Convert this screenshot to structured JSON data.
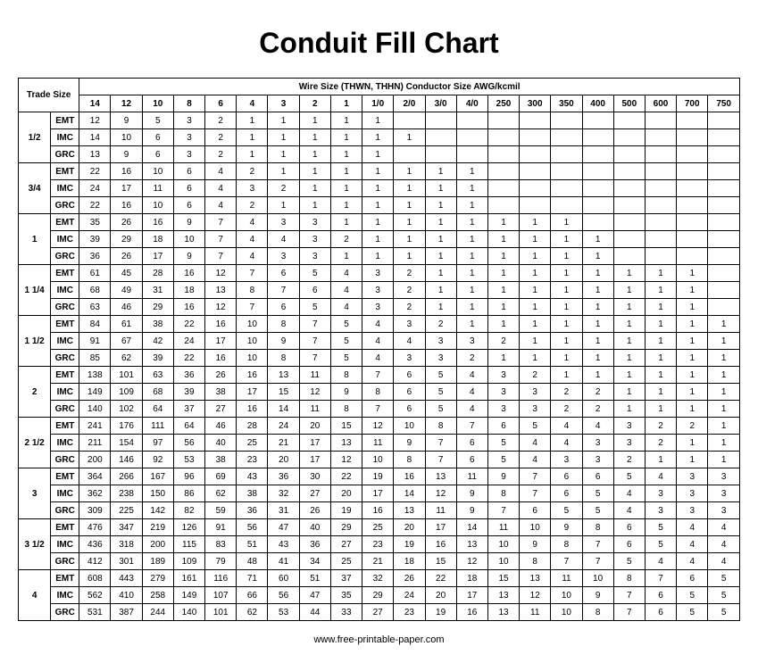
{
  "title": "Conduit Fill Chart",
  "footer": "www.free-printable-paper.com",
  "trade_size_label": "Trade Size",
  "wire_size_label": "Wire Size (THWN, THHN) Conductor Size AWG/kcmil",
  "wire_sizes": [
    "14",
    "12",
    "10",
    "8",
    "6",
    "4",
    "3",
    "2",
    "1",
    "1/0",
    "2/0",
    "3/0",
    "4/0",
    "250",
    "300",
    "350",
    "400",
    "500",
    "600",
    "700",
    "750"
  ],
  "groups": [
    {
      "trade": "1/2",
      "rows": [
        {
          "type": "EMT",
          "v": [
            "12",
            "9",
            "5",
            "3",
            "2",
            "1",
            "1",
            "1",
            "1",
            "1",
            "",
            "",
            "",
            "",
            "",
            "",
            "",
            "",
            "",
            "",
            ""
          ]
        },
        {
          "type": "IMC",
          "v": [
            "14",
            "10",
            "6",
            "3",
            "2",
            "1",
            "1",
            "1",
            "1",
            "1",
            "1",
            "",
            "",
            "",
            "",
            "",
            "",
            "",
            "",
            "",
            ""
          ]
        },
        {
          "type": "GRC",
          "v": [
            "13",
            "9",
            "6",
            "3",
            "2",
            "1",
            "1",
            "1",
            "1",
            "1",
            "",
            "",
            "",
            "",
            "",
            "",
            "",
            "",
            "",
            "",
            ""
          ]
        }
      ]
    },
    {
      "trade": "3/4",
      "rows": [
        {
          "type": "EMT",
          "v": [
            "22",
            "16",
            "10",
            "6",
            "4",
            "2",
            "1",
            "1",
            "1",
            "1",
            "1",
            "1",
            "1",
            "",
            "",
            "",
            "",
            "",
            "",
            "",
            ""
          ]
        },
        {
          "type": "IMC",
          "v": [
            "24",
            "17",
            "11",
            "6",
            "4",
            "3",
            "2",
            "1",
            "1",
            "1",
            "1",
            "1",
            "1",
            "",
            "",
            "",
            "",
            "",
            "",
            "",
            ""
          ]
        },
        {
          "type": "GRC",
          "v": [
            "22",
            "16",
            "10",
            "6",
            "4",
            "2",
            "1",
            "1",
            "1",
            "1",
            "1",
            "1",
            "1",
            "",
            "",
            "",
            "",
            "",
            "",
            "",
            ""
          ]
        }
      ]
    },
    {
      "trade": "1",
      "rows": [
        {
          "type": "EMT",
          "v": [
            "35",
            "26",
            "16",
            "9",
            "7",
            "4",
            "3",
            "3",
            "1",
            "1",
            "1",
            "1",
            "1",
            "1",
            "1",
            "1",
            "",
            "",
            "",
            "",
            ""
          ]
        },
        {
          "type": "IMC",
          "v": [
            "39",
            "29",
            "18",
            "10",
            "7",
            "4",
            "4",
            "3",
            "2",
            "1",
            "1",
            "1",
            "1",
            "1",
            "1",
            "1",
            "1",
            "",
            "",
            "",
            ""
          ]
        },
        {
          "type": "GRC",
          "v": [
            "36",
            "26",
            "17",
            "9",
            "7",
            "4",
            "3",
            "3",
            "1",
            "1",
            "1",
            "1",
            "1",
            "1",
            "1",
            "1",
            "1",
            "",
            "",
            "",
            ""
          ]
        }
      ]
    },
    {
      "trade": "1 1/4",
      "rows": [
        {
          "type": "EMT",
          "v": [
            "61",
            "45",
            "28",
            "16",
            "12",
            "7",
            "6",
            "5",
            "4",
            "3",
            "2",
            "1",
            "1",
            "1",
            "1",
            "1",
            "1",
            "1",
            "1",
            "1",
            ""
          ]
        },
        {
          "type": "IMC",
          "v": [
            "68",
            "49",
            "31",
            "18",
            "13",
            "8",
            "7",
            "6",
            "4",
            "3",
            "2",
            "1",
            "1",
            "1",
            "1",
            "1",
            "1",
            "1",
            "1",
            "1",
            ""
          ]
        },
        {
          "type": "GRC",
          "v": [
            "63",
            "46",
            "29",
            "16",
            "12",
            "7",
            "6",
            "5",
            "4",
            "3",
            "2",
            "1",
            "1",
            "1",
            "1",
            "1",
            "1",
            "1",
            "1",
            "1",
            ""
          ]
        }
      ]
    },
    {
      "trade": "1 1/2",
      "rows": [
        {
          "type": "EMT",
          "v": [
            "84",
            "61",
            "38",
            "22",
            "16",
            "10",
            "8",
            "7",
            "5",
            "4",
            "3",
            "2",
            "1",
            "1",
            "1",
            "1",
            "1",
            "1",
            "1",
            "1",
            "1"
          ]
        },
        {
          "type": "IMC",
          "v": [
            "91",
            "67",
            "42",
            "24",
            "17",
            "10",
            "9",
            "7",
            "5",
            "4",
            "4",
            "3",
            "3",
            "2",
            "1",
            "1",
            "1",
            "1",
            "1",
            "1",
            "1"
          ]
        },
        {
          "type": "GRC",
          "v": [
            "85",
            "62",
            "39",
            "22",
            "16",
            "10",
            "8",
            "7",
            "5",
            "4",
            "3",
            "3",
            "2",
            "1",
            "1",
            "1",
            "1",
            "1",
            "1",
            "1",
            "1"
          ]
        }
      ]
    },
    {
      "trade": "2",
      "rows": [
        {
          "type": "EMT",
          "v": [
            "138",
            "101",
            "63",
            "36",
            "26",
            "16",
            "13",
            "11",
            "8",
            "7",
            "6",
            "5",
            "4",
            "3",
            "2",
            "1",
            "1",
            "1",
            "1",
            "1",
            "1"
          ]
        },
        {
          "type": "IMC",
          "v": [
            "149",
            "109",
            "68",
            "39",
            "38",
            "17",
            "15",
            "12",
            "9",
            "8",
            "6",
            "5",
            "4",
            "3",
            "3",
            "2",
            "2",
            "1",
            "1",
            "1",
            "1"
          ]
        },
        {
          "type": "GRC",
          "v": [
            "140",
            "102",
            "64",
            "37",
            "27",
            "16",
            "14",
            "11",
            "8",
            "7",
            "6",
            "5",
            "4",
            "3",
            "3",
            "2",
            "2",
            "1",
            "1",
            "1",
            "1"
          ]
        }
      ]
    },
    {
      "trade": "2 1/2",
      "rows": [
        {
          "type": "EMT",
          "v": [
            "241",
            "176",
            "111",
            "64",
            "46",
            "28",
            "24",
            "20",
            "15",
            "12",
            "10",
            "8",
            "7",
            "6",
            "5",
            "4",
            "4",
            "3",
            "2",
            "2",
            "1"
          ]
        },
        {
          "type": "IMC",
          "v": [
            "211",
            "154",
            "97",
            "56",
            "40",
            "25",
            "21",
            "17",
            "13",
            "11",
            "9",
            "7",
            "6",
            "5",
            "4",
            "4",
            "3",
            "3",
            "2",
            "1",
            "1"
          ]
        },
        {
          "type": "GRC",
          "v": [
            "200",
            "146",
            "92",
            "53",
            "38",
            "23",
            "20",
            "17",
            "12",
            "10",
            "8",
            "7",
            "6",
            "5",
            "4",
            "3",
            "3",
            "2",
            "1",
            "1",
            "1"
          ]
        }
      ]
    },
    {
      "trade": "3",
      "rows": [
        {
          "type": "EMT",
          "v": [
            "364",
            "266",
            "167",
            "96",
            "69",
            "43",
            "36",
            "30",
            "22",
            "19",
            "16",
            "13",
            "11",
            "9",
            "7",
            "6",
            "6",
            "5",
            "4",
            "3",
            "3"
          ]
        },
        {
          "type": "IMC",
          "v": [
            "362",
            "238",
            "150",
            "86",
            "62",
            "38",
            "32",
            "27",
            "20",
            "17",
            "14",
            "12",
            "9",
            "8",
            "7",
            "6",
            "5",
            "4",
            "3",
            "3",
            "3"
          ]
        },
        {
          "type": "GRC",
          "v": [
            "309",
            "225",
            "142",
            "82",
            "59",
            "36",
            "31",
            "26",
            "19",
            "16",
            "13",
            "11",
            "9",
            "7",
            "6",
            "5",
            "5",
            "4",
            "3",
            "3",
            "3"
          ]
        }
      ]
    },
    {
      "trade": "3 1/2",
      "rows": [
        {
          "type": "EMT",
          "v": [
            "476",
            "347",
            "219",
            "126",
            "91",
            "56",
            "47",
            "40",
            "29",
            "25",
            "20",
            "17",
            "14",
            "11",
            "10",
            "9",
            "8",
            "6",
            "5",
            "4",
            "4"
          ]
        },
        {
          "type": "IMC",
          "v": [
            "436",
            "318",
            "200",
            "115",
            "83",
            "51",
            "43",
            "36",
            "27",
            "23",
            "19",
            "16",
            "13",
            "10",
            "9",
            "8",
            "7",
            "6",
            "5",
            "4",
            "4"
          ]
        },
        {
          "type": "GRC",
          "v": [
            "412",
            "301",
            "189",
            "109",
            "79",
            "48",
            "41",
            "34",
            "25",
            "21",
            "18",
            "15",
            "12",
            "10",
            "8",
            "7",
            "7",
            "5",
            "4",
            "4",
            "4"
          ]
        }
      ]
    },
    {
      "trade": "4",
      "rows": [
        {
          "type": "EMT",
          "v": [
            "608",
            "443",
            "279",
            "161",
            "116",
            "71",
            "60",
            "51",
            "37",
            "32",
            "26",
            "22",
            "18",
            "15",
            "13",
            "11",
            "10",
            "8",
            "7",
            "6",
            "5"
          ]
        },
        {
          "type": "IMC",
          "v": [
            "562",
            "410",
            "258",
            "149",
            "107",
            "66",
            "56",
            "47",
            "35",
            "29",
            "24",
            "20",
            "17",
            "13",
            "12",
            "10",
            "9",
            "7",
            "6",
            "5",
            "5"
          ]
        },
        {
          "type": "GRC",
          "v": [
            "531",
            "387",
            "244",
            "140",
            "101",
            "62",
            "53",
            "44",
            "33",
            "27",
            "23",
            "19",
            "16",
            "13",
            "11",
            "10",
            "8",
            "7",
            "6",
            "5",
            "5"
          ]
        }
      ]
    }
  ],
  "styling": {
    "title_fontsize": 32,
    "cell_fontsize": 10,
    "border_color": "#000000",
    "background_color": "#ffffff",
    "text_color": "#000000"
  }
}
